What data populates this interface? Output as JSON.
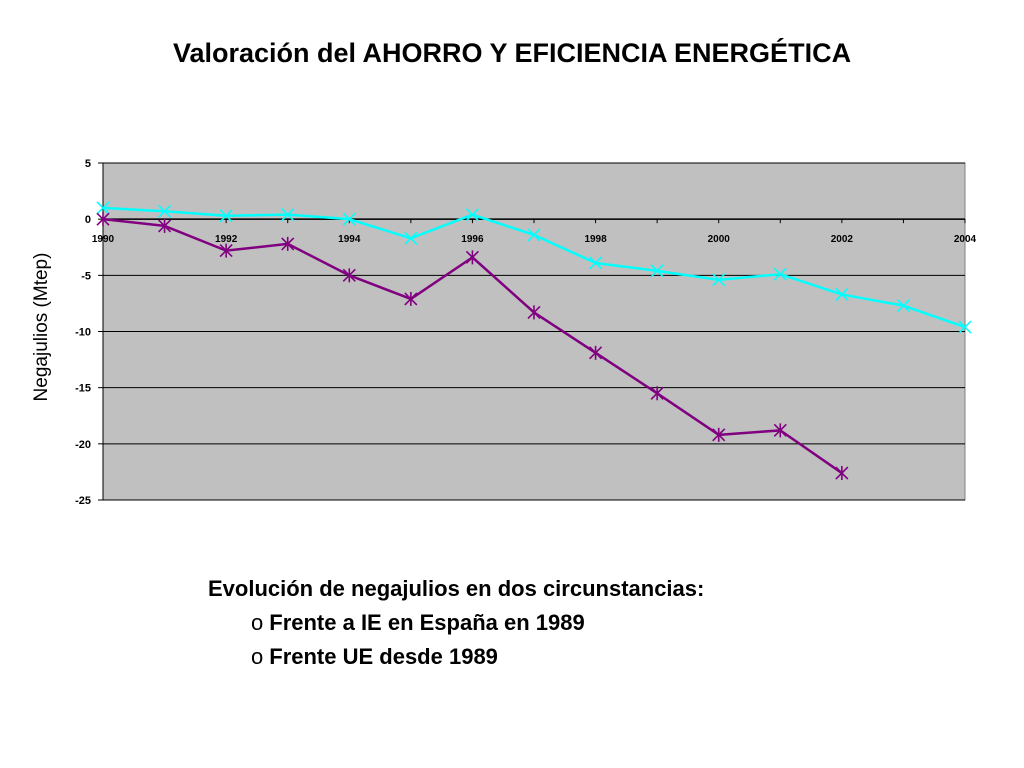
{
  "slide": {
    "title": "Valoración del AHORRO Y EFICIENCIA ENERGÉTICA",
    "caption": "Evolución de negajulios en dos circunstancias:",
    "bullet_marker": "o",
    "bullets": [
      "Frente a IE en España en 1989",
      "Frente UE desde 1989"
    ]
  },
  "chart_data": {
    "type": "line",
    "title": "",
    "xlabel": "",
    "ylabel": "Negajulios (Mtep)",
    "xlim": [
      1990,
      2004
    ],
    "ylim": [
      -25,
      5
    ],
    "xticks": [
      "1990",
      "1992",
      "1994",
      "1996",
      "1998",
      "2000",
      "2002",
      "2004"
    ],
    "yticks": [
      "5",
      "0",
      "-5",
      "-10",
      "-15",
      "-20",
      "-25"
    ],
    "grid": "horizontal",
    "plot_background": "#c0c0c0",
    "series": [
      {
        "color": "#00ffff",
        "marker": "x",
        "x": [
          1990,
          1991,
          1992,
          1993,
          1994,
          1995,
          1996,
          1997,
          1998,
          1999,
          2000,
          2001,
          2002,
          2003,
          2004
        ],
        "y": [
          1.0,
          0.7,
          0.3,
          0.4,
          0.0,
          -1.7,
          0.4,
          -1.4,
          -3.9,
          -4.6,
          -5.4,
          -4.9,
          -6.7,
          -7.7,
          -9.6
        ]
      },
      {
        "color": "#800080",
        "marker": "asterisk",
        "x": [
          1990,
          1991,
          1992,
          1993,
          1994,
          1995,
          1996,
          1997,
          1998,
          1999,
          2000,
          2001,
          2002
        ],
        "y": [
          0.0,
          -0.6,
          -2.8,
          -2.2,
          -5.0,
          -7.1,
          -3.4,
          -8.3,
          -11.9,
          -15.5,
          -19.2,
          -18.8,
          -22.6
        ]
      }
    ]
  }
}
